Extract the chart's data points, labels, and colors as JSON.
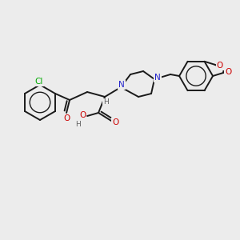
{
  "bg_color": "#ececec",
  "atom_colors": {
    "C": "#000000",
    "N": "#2222cc",
    "O": "#cc0000",
    "Cl": "#00aa00",
    "H": "#606060"
  },
  "figsize": [
    3.0,
    3.0
  ],
  "dpi": 100,
  "lw": 1.4,
  "lw_inner": 1.0,
  "font_size": 7.5,
  "bond_color": "#1a1a1a"
}
